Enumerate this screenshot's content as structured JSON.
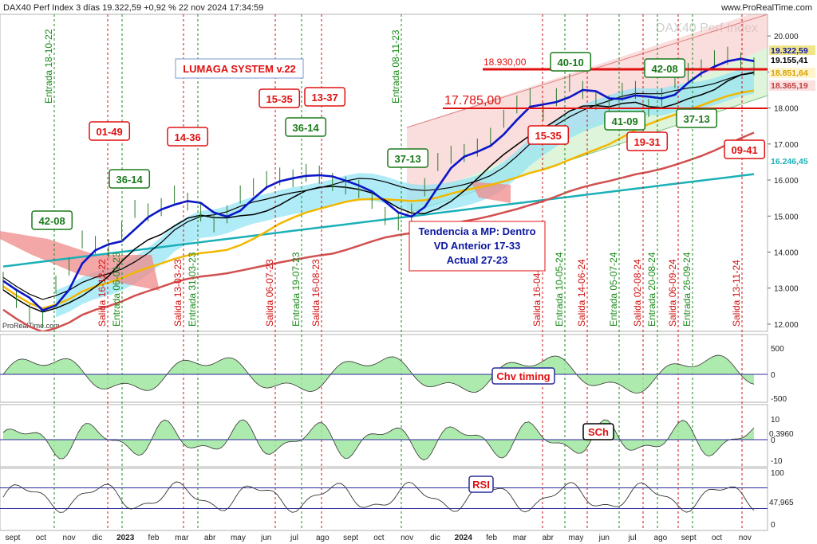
{
  "header": {
    "title": "DAX40 Perf Index 3 días 19.322,59 +0,92 % 22 nov 2024 17:34:59",
    "site": "www.ProRealTime.com",
    "watermark": "DAX40 Perf Index",
    "copyright": "ProRealTime.com"
  },
  "colors": {
    "price": "#0a16c8",
    "ma_black": "#000000",
    "ma_yellow": "#f2b800",
    "ma_red": "#d25050",
    "ma_cyan": "#1bb0b8",
    "cloud_cyan": "#8ee3f5",
    "cloud_red": "#f08a8a",
    "buy_line": "#1a8a1a",
    "sell_line": "#d01010",
    "osc_pos": "#9fe69f",
    "osc_neg": "#f2a3a3"
  },
  "chart_data": [
    {
      "type": "line",
      "title": "DAX40 Perf Index 3 días",
      "x_labels": [
        "sept",
        "oct",
        "nov",
        "dic",
        "2023",
        "feb",
        "mar",
        "abr",
        "may",
        "jun",
        "jul",
        "ago",
        "sept",
        "oct",
        "nov",
        "dic",
        "2024",
        "feb",
        "mar",
        "abr",
        "may",
        "jun",
        "jul",
        "ago",
        "sept",
        "oct",
        "nov"
      ],
      "y_ticks": [
        "20.000",
        "19.000",
        "18.000",
        "17.000",
        "16.000",
        "15.000",
        "14.000",
        "13.000",
        "12.000"
      ],
      "ylim": [
        11800,
        20600
      ],
      "series": [
        {
          "values": [
            13200,
            12700,
            12300,
            12150,
            13100,
            13600,
            14350,
            14200,
            14100,
            14600,
            15200,
            15100,
            15250,
            15600,
            15400,
            15100,
            14800,
            15050,
            15600,
            15800,
            16000,
            16100,
            16050,
            16200,
            16150,
            15950,
            15850,
            15750,
            15450,
            15000,
            14850,
            15100,
            15800,
            16500,
            16700,
            16750,
            16900,
            17200,
            17700,
            18100,
            18300,
            17900,
            18300,
            18700,
            18500,
            18200,
            18100,
            18450,
            18500,
            18000,
            18300,
            18800,
            19000,
            19100,
            19350,
            19450,
            19300,
            19155
          ]
        }
      ],
      "price_labels": [
        "19.322,59",
        "19.155,41",
        "18.851,64",
        "18.365,19",
        "16.246,45"
      ],
      "level_labels": [
        "18.930,00",
        "17.785,00"
      ],
      "system_label": "LUMAGA SYSTEM v.22",
      "info_box": [
        "Tendencia a MP: Dentro",
        "VD Anterior 17-33",
        "Actual 27-23"
      ],
      "entries": [
        "Entrada 18-10-22",
        "Entrada 06-01-23",
        "Entrada 31-03-23",
        "Entrada 19-07-23",
        "Entrada 08-11-23",
        "Entrada 10-05-24",
        "Entrada 05-07-24",
        "Entrada 20-08-24",
        "Entrada 26-09-24"
      ],
      "exits": [
        "Salida 16-12-22",
        "Salida 13-03-23",
        "Salida 06-07-23",
        "Salida 16-08-23",
        "Salida 16-04-24",
        "Salida 14-06-24",
        "Salida 02-08-24",
        "Salida 06-09-24",
        "Salida 13-11-24"
      ],
      "green_boxes": [
        "42-08",
        "36-14",
        "36-14",
        "37-13",
        "40-10",
        "41-09",
        "42-08",
        "37-13"
      ],
      "red_boxes": [
        "01-49",
        "14-36",
        "15-35",
        "13-37",
        "15-35",
        "19-31",
        "09-41"
      ]
    },
    {
      "type": "area",
      "title": "Chv timing",
      "y_ticks": [
        "500",
        "0",
        "-500"
      ],
      "ylim": [
        -650,
        650
      ]
    },
    {
      "type": "area",
      "title": "SCh",
      "y_ticks": [
        "10",
        "0",
        "-10"
      ],
      "value_label": "0,3960",
      "ylim": [
        -12,
        14
      ]
    },
    {
      "type": "line",
      "title": "RSI",
      "y_ticks": [
        "100",
        "0"
      ],
      "value_label": "47,965",
      "ylim": [
        0,
        100
      ]
    }
  ]
}
